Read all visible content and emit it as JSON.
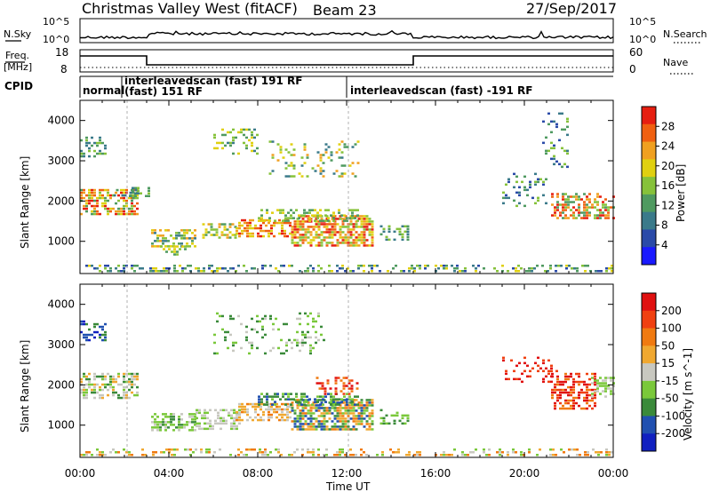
{
  "header": {
    "title": "Christmas Valley West (fitACF)",
    "beam": "Beam 23",
    "date": "27/Sep/2017"
  },
  "status_panel": {
    "nsky_label": "N.Sky",
    "nsearch_label": "N.Search",
    "nsky_ticks": [
      "10^5",
      "10^0"
    ],
    "nsearch_ticks": [
      "10^5",
      "10^0"
    ],
    "freq_label_top": "Freq.",
    "freq_label_bottom": "[MHz]",
    "freq_ticks": [
      "18",
      "8"
    ],
    "nave_label": "Nave",
    "nave_ticks": [
      "60",
      "0"
    ],
    "cpid_label": "CPID",
    "cpid_segments": [
      "normal",
      "interleavedscan (fast) 191 RF",
      "(fast) 151 RF",
      "interleavedscan (fast) -191 RF"
    ]
  },
  "chart_data": [
    {
      "type": "heatmap",
      "name": "power",
      "ylabel": "Slant Range [km]",
      "y_ticks": [
        "4000",
        "3000",
        "2000",
        "1000"
      ],
      "x_ticks": [
        "00:00",
        "04:00",
        "08:00",
        "12:00",
        "16:00",
        "20:00",
        "00:00"
      ],
      "colorbar": {
        "label": "Power [dB]",
        "ticks": [
          "28",
          "24",
          "20",
          "16",
          "12",
          "8",
          "4"
        ],
        "colors": [
          "#1a1aff",
          "#2a4aa8",
          "#3a7a8a",
          "#4f9a60",
          "#86c23a",
          "#e0d010",
          "#f0a020",
          "#f06010",
          "#e61e10"
        ]
      }
    },
    {
      "type": "heatmap",
      "name": "velocity",
      "ylabel": "Slant Range [km]",
      "y_ticks": [
        "4000",
        "3000",
        "2000",
        "1000"
      ],
      "x_ticks": [
        "00:00",
        "04:00",
        "08:00",
        "12:00",
        "16:00",
        "20:00",
        "00:00"
      ],
      "xlabel": "Time UT",
      "colorbar": {
        "label": "Velocity [m s^-1]",
        "ticks": [
          "200",
          "100",
          "50",
          "15",
          "-15",
          "-50",
          "-100",
          "-200"
        ],
        "colors": [
          "#1020c0",
          "#2050b0",
          "#3a8a3a",
          "#7ac83a",
          "#c8c8c0",
          "#f0a830",
          "#f07a10",
          "#f04010",
          "#e01010"
        ]
      }
    }
  ]
}
